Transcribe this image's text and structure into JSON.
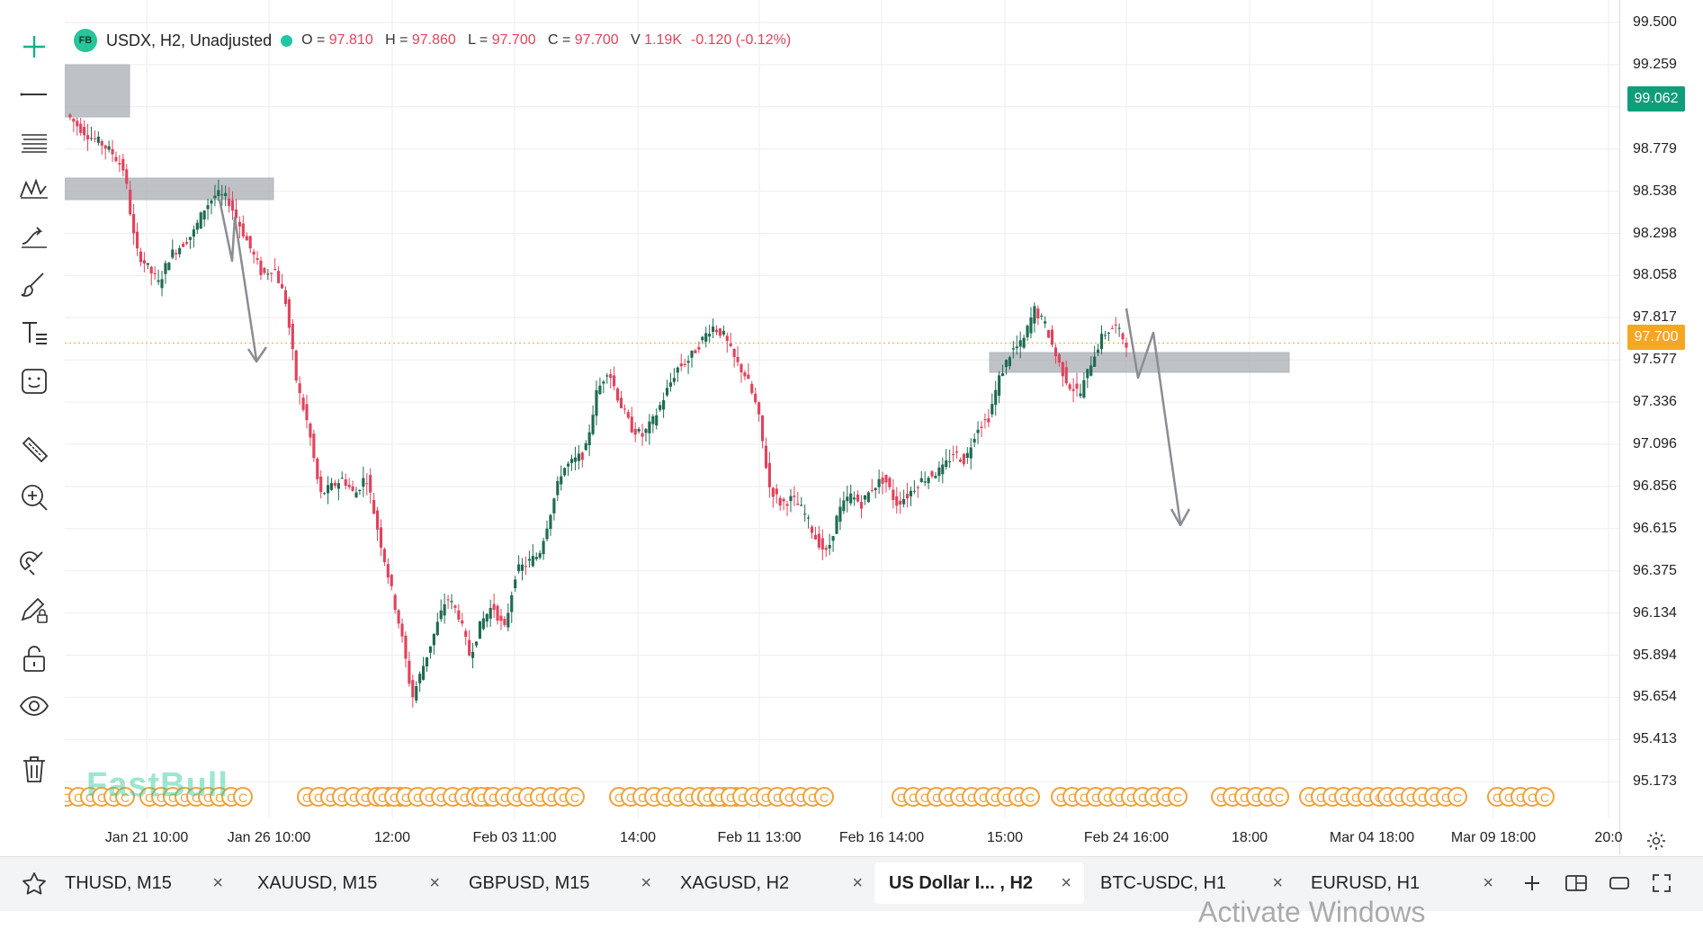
{
  "legend": {
    "badge": "FB",
    "symbol": "USDX, H2, Unadjusted",
    "open_label": "O =",
    "open": "97.810",
    "high_label": "H =",
    "high": "97.860",
    "low_label": "L =",
    "low": "97.700",
    "close_label": "C =",
    "close": "97.700",
    "volume_label": "V",
    "volume": "1.19K",
    "change": "-0.120 (-0.12%)"
  },
  "toolbar": {
    "tools": [
      "plus-icon",
      "horizontal-line-icon",
      "fib-lines-icon",
      "pattern-icon",
      "trend-arrow-icon",
      "brush-icon",
      "text-tool-icon",
      "emoji-icon",
      "ruler-icon",
      "zoom-in-icon",
      "magnet-icon",
      "lock-drawing-icon",
      "unlock-icon",
      "eye-icon",
      "trash-icon"
    ]
  },
  "price_axis": {
    "labels": [
      "99.500",
      "99.259",
      "98.779",
      "98.538",
      "98.298",
      "98.058",
      "97.817",
      "97.577",
      "97.336",
      "97.096",
      "96.856",
      "96.615",
      "96.375",
      "96.134",
      "95.894",
      "95.654",
      "95.413",
      "95.173"
    ],
    "current_high_tag": "99.062",
    "last_price_tag": "97.700",
    "tag_colors": {
      "high": "#0f9d7a",
      "last": "#f5a623"
    }
  },
  "time_axis": {
    "labels": [
      "Jan 21 10:00",
      "Jan 26 10:00",
      "12:00",
      "Feb 03 11:00",
      "14:00",
      "Feb 11 13:00",
      "Feb 16 14:00",
      "15:00",
      "Feb 24 16:00",
      "18:00",
      "Mar 04 18:00",
      "Mar 09 18:00",
      "20:0"
    ]
  },
  "chart_data": {
    "type": "candlestick",
    "symbol": "USDX",
    "timeframe": "H2",
    "ylim": [
      95.05,
      99.62
    ],
    "last_price": 97.7,
    "colors": {
      "up": "#1e6b52",
      "down": "#e0435c"
    },
    "path": [
      [
        0,
        99.05
      ],
      [
        1,
        98.98
      ],
      [
        2,
        98.92
      ],
      [
        3,
        98.88
      ],
      [
        4,
        98.82
      ],
      [
        5,
        98.72
      ],
      [
        6,
        98.25
      ],
      [
        7,
        98.15
      ],
      [
        8,
        98.05
      ],
      [
        9,
        98.22
      ],
      [
        10,
        98.28
      ],
      [
        11,
        98.35
      ],
      [
        12,
        98.5
      ],
      [
        13,
        98.58
      ],
      [
        14,
        98.55
      ],
      [
        15,
        98.4
      ],
      [
        16,
        98.25
      ],
      [
        17,
        98.1
      ],
      [
        18,
        98.15
      ],
      [
        19,
        97.95
      ],
      [
        20,
        97.45
      ],
      [
        21,
        97.2
      ],
      [
        22,
        96.8
      ],
      [
        23,
        96.85
      ],
      [
        24,
        96.9
      ],
      [
        25,
        96.8
      ],
      [
        26,
        96.92
      ],
      [
        27,
        96.6
      ],
      [
        28,
        96.3
      ],
      [
        29,
        96.0
      ],
      [
        30,
        95.6
      ],
      [
        31,
        95.8
      ],
      [
        32,
        96.0
      ],
      [
        33,
        96.2
      ],
      [
        34,
        96.1
      ],
      [
        35,
        95.85
      ],
      [
        36,
        96.05
      ],
      [
        37,
        96.15
      ],
      [
        38,
        96.0
      ],
      [
        39,
        96.35
      ],
      [
        40,
        96.4
      ],
      [
        41,
        96.45
      ],
      [
        42,
        96.7
      ],
      [
        43,
        96.95
      ],
      [
        44,
        97.0
      ],
      [
        45,
        97.05
      ],
      [
        46,
        97.4
      ],
      [
        47,
        97.55
      ],
      [
        48,
        97.35
      ],
      [
        49,
        97.2
      ],
      [
        50,
        97.15
      ],
      [
        51,
        97.25
      ],
      [
        52,
        97.4
      ],
      [
        53,
        97.55
      ],
      [
        54,
        97.6
      ],
      [
        55,
        97.7
      ],
      [
        56,
        97.8
      ],
      [
        57,
        97.75
      ],
      [
        58,
        97.6
      ],
      [
        59,
        97.5
      ],
      [
        60,
        97.3
      ],
      [
        61,
        96.85
      ],
      [
        62,
        96.75
      ],
      [
        63,
        96.78
      ],
      [
        64,
        96.7
      ],
      [
        65,
        96.55
      ],
      [
        66,
        96.45
      ],
      [
        67,
        96.7
      ],
      [
        68,
        96.8
      ],
      [
        69,
        96.75
      ],
      [
        70,
        96.85
      ],
      [
        71,
        96.9
      ],
      [
        72,
        96.75
      ],
      [
        73,
        96.8
      ],
      [
        74,
        96.88
      ],
      [
        75,
        96.92
      ],
      [
        76,
        96.95
      ],
      [
        77,
        97.05
      ],
      [
        78,
        97.0
      ],
      [
        79,
        97.2
      ],
      [
        80,
        97.25
      ],
      [
        81,
        97.5
      ],
      [
        82,
        97.65
      ],
      [
        83,
        97.7
      ],
      [
        84,
        97.9
      ],
      [
        85,
        97.8
      ],
      [
        86,
        97.6
      ],
      [
        87,
        97.45
      ],
      [
        88,
        97.4
      ],
      [
        89,
        97.6
      ],
      [
        90,
        97.75
      ],
      [
        91,
        97.8
      ],
      [
        92,
        97.7
      ]
    ]
  },
  "overlay": {
    "events_badge": "C",
    "watermark": "FastBull"
  },
  "tabs": [
    {
      "label": "THUSD, M15",
      "active": false
    },
    {
      "label": "XAUUSD, M15",
      "active": false
    },
    {
      "label": "GBPUSD, M15",
      "active": false
    },
    {
      "label": "XAGUSD, H2",
      "active": false
    },
    {
      "label": "US Dollar I... , H2",
      "active": true
    },
    {
      "label": "BTC-USDC, H1",
      "active": false
    },
    {
      "label": "EURUSD, H1",
      "active": false
    }
  ],
  "tab_close_glyph": "×",
  "tab_controls": [
    "add-tab-icon",
    "layout-split-icon",
    "window-icon",
    "fullscreen-icon"
  ],
  "os_watermark": "Activate Windows"
}
